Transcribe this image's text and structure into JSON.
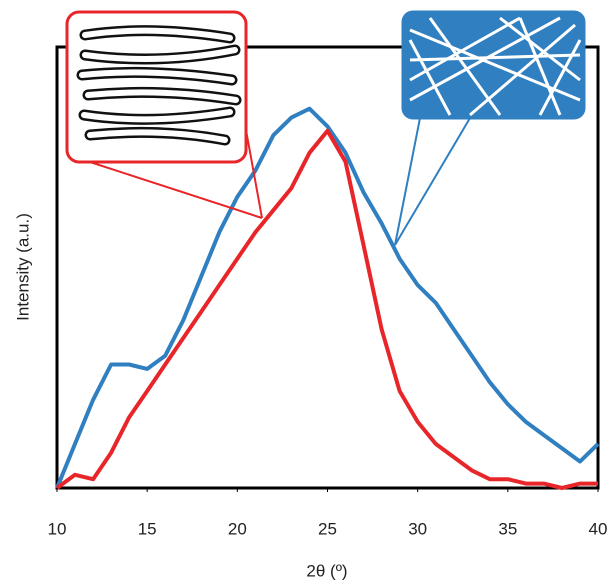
{
  "chart_data": {
    "type": "line",
    "x_label": "2θ (º)",
    "y_label": "Intensity (a.u.)",
    "x": [
      10,
      11,
      12,
      13,
      14,
      15,
      16,
      17,
      18,
      19,
      20,
      21,
      22,
      23,
      24,
      25,
      26,
      27,
      28,
      29,
      30,
      31,
      32,
      33,
      34,
      35,
      36,
      37,
      38,
      39,
      40
    ],
    "series": [
      {
        "color": "#2f7fc1",
        "values": [
          0,
          10,
          20,
          28,
          28,
          27,
          30,
          38,
          48,
          58,
          66,
          72,
          80,
          84,
          86,
          82,
          76,
          67,
          60,
          52,
          46,
          42,
          36,
          30,
          24,
          19,
          15,
          12,
          9,
          6,
          10
        ]
      },
      {
        "color": "#e8262a",
        "values": [
          0,
          3,
          2,
          8,
          16,
          22,
          28,
          34,
          40,
          46,
          52,
          58,
          63,
          68,
          76,
          81,
          74,
          55,
          36,
          22,
          15,
          10,
          7,
          4,
          2,
          2,
          1,
          1,
          0,
          1,
          1
        ]
      }
    ],
    "xlim": [
      10,
      40
    ],
    "xticks": [
      10,
      15,
      20,
      25,
      30,
      35,
      40
    ],
    "ylim": [
      0,
      100
    ]
  }
}
